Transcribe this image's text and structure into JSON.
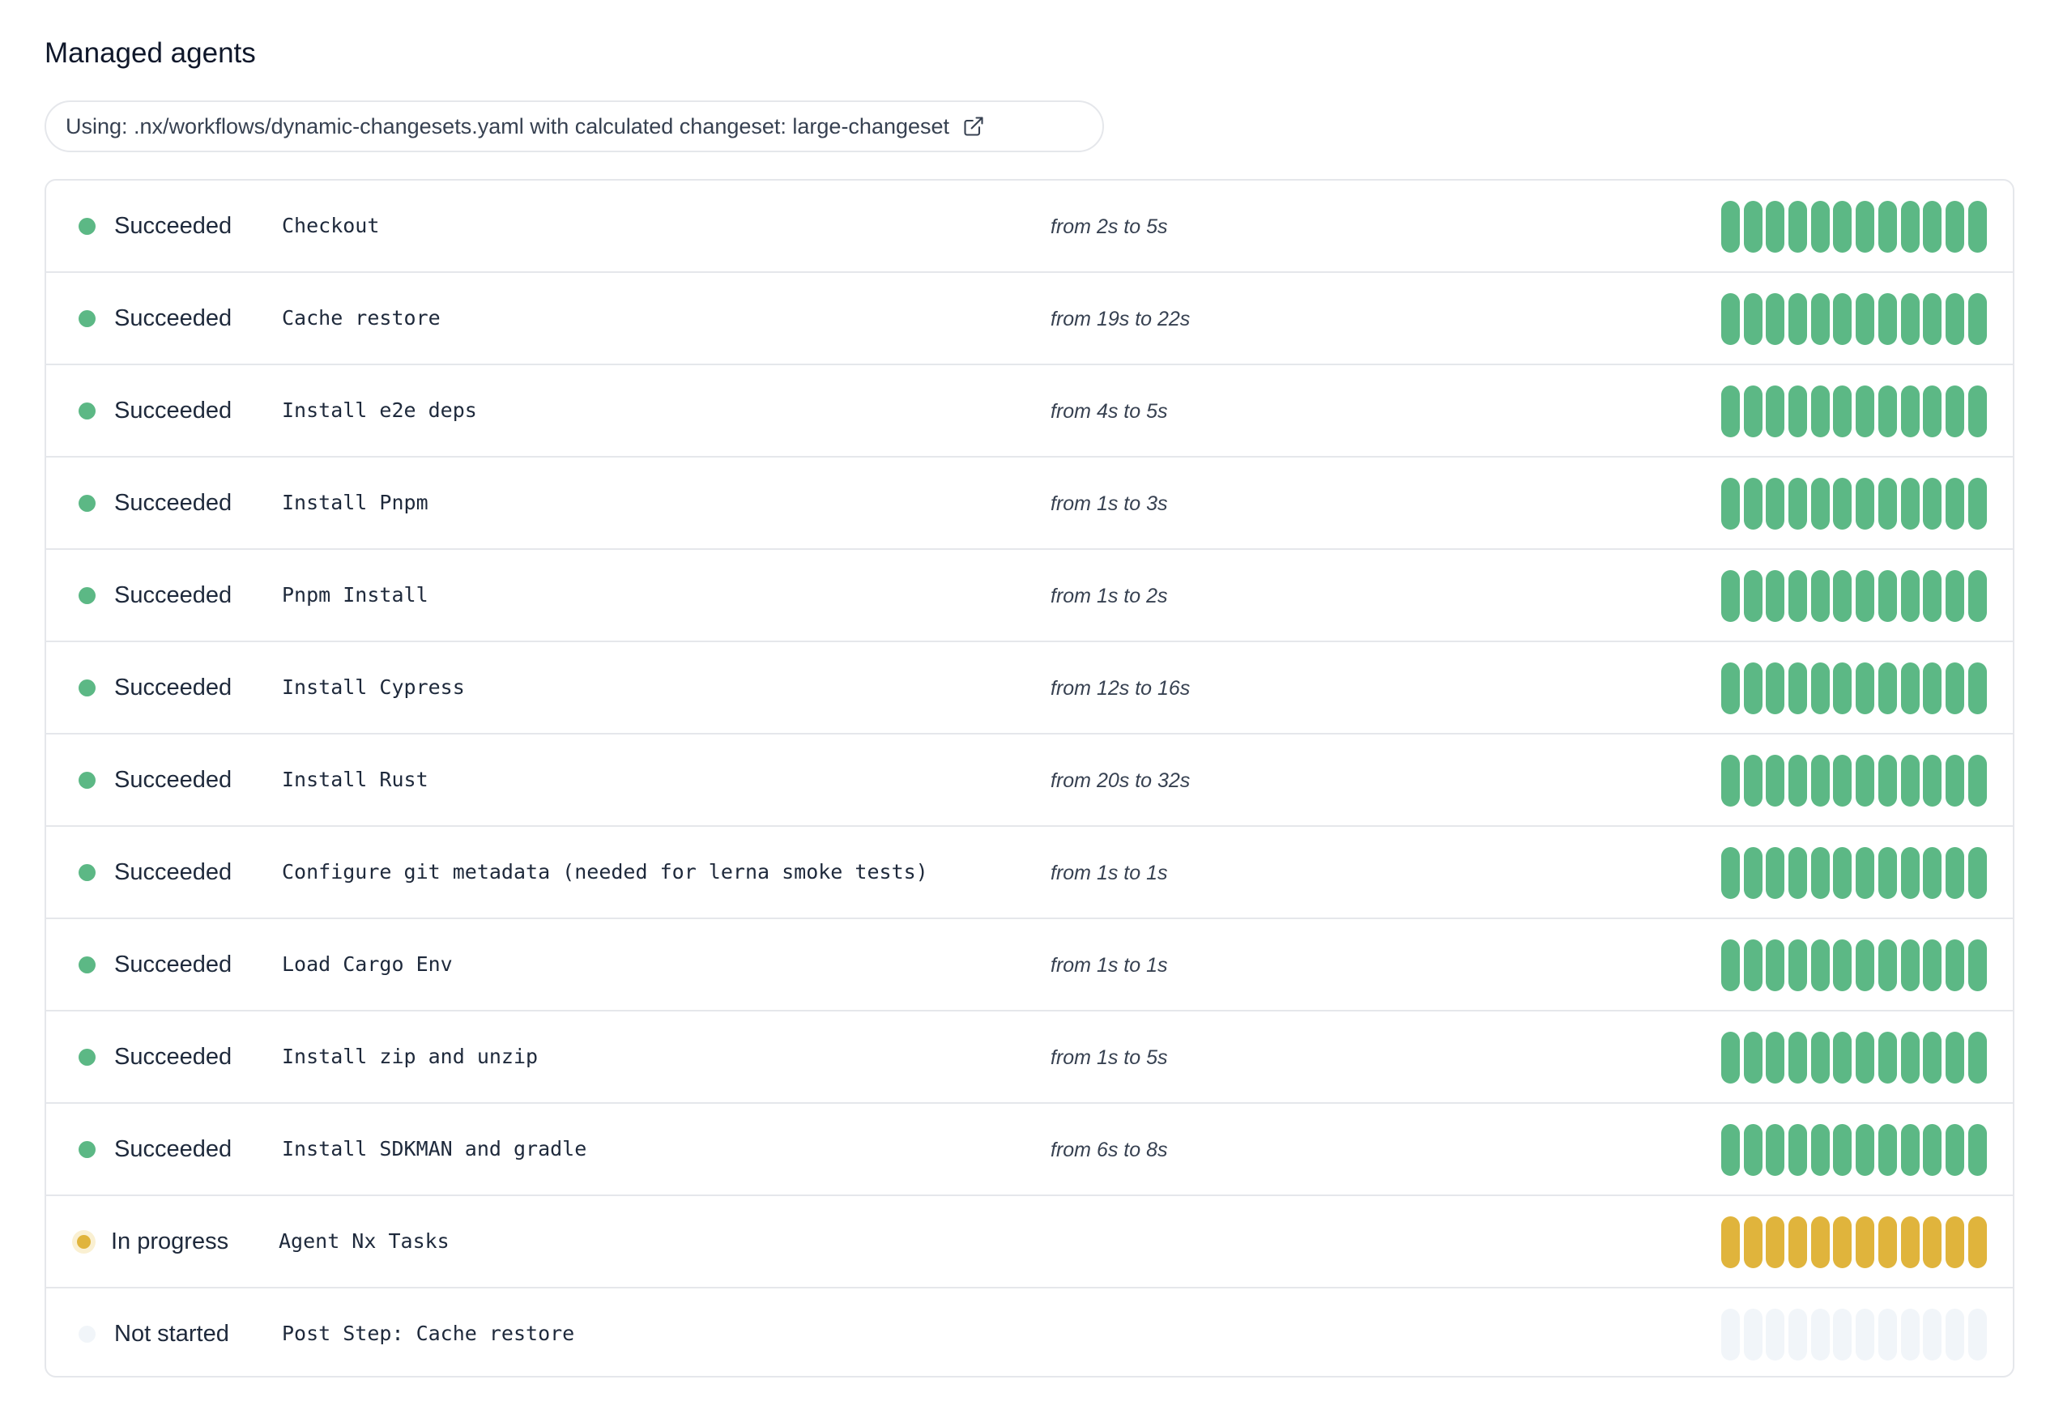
{
  "title": "Managed agents",
  "workflow": {
    "text": "Using: .nx/workflows/dynamic-changesets.yaml with calculated changeset: large-changeset",
    "icon": "external-link-icon"
  },
  "colors": {
    "succeeded": "#5cb885",
    "in_progress": "#e0b43c",
    "not_started": "#f1f5f9",
    "in_progress_halo": "#faf0d2"
  },
  "steps": [
    {
      "status": "Succeeded",
      "state": "succeeded",
      "name": "Checkout",
      "duration": "from 2s to 5s"
    },
    {
      "status": "Succeeded",
      "state": "succeeded",
      "name": "Cache restore",
      "duration": "from 19s to 22s"
    },
    {
      "status": "Succeeded",
      "state": "succeeded",
      "name": "Install e2e deps",
      "duration": "from 4s to 5s"
    },
    {
      "status": "Succeeded",
      "state": "succeeded",
      "name": "Install Pnpm",
      "duration": "from 1s to 3s"
    },
    {
      "status": "Succeeded",
      "state": "succeeded",
      "name": "Pnpm Install",
      "duration": "from 1s to 2s"
    },
    {
      "status": "Succeeded",
      "state": "succeeded",
      "name": "Install Cypress",
      "duration": "from 12s to 16s"
    },
    {
      "status": "Succeeded",
      "state": "succeeded",
      "name": "Install Rust",
      "duration": "from 20s to 32s"
    },
    {
      "status": "Succeeded",
      "state": "succeeded",
      "name": "Configure git metadata (needed for lerna smoke tests)",
      "duration": "from 1s to 1s"
    },
    {
      "status": "Succeeded",
      "state": "succeeded",
      "name": "Load Cargo Env",
      "duration": "from 1s to 1s"
    },
    {
      "status": "Succeeded",
      "state": "succeeded",
      "name": "Install zip and unzip",
      "duration": "from 1s to 5s"
    },
    {
      "status": "Succeeded",
      "state": "succeeded",
      "name": "Install SDKMAN and gradle",
      "duration": "from 6s to 8s"
    },
    {
      "status": "In progress",
      "state": "in_progress",
      "name": "Agent Nx Tasks",
      "duration": ""
    },
    {
      "status": "Not started",
      "state": "not_started",
      "name": "Post Step: Cache restore",
      "duration": ""
    }
  ],
  "agents_per_step": 12
}
